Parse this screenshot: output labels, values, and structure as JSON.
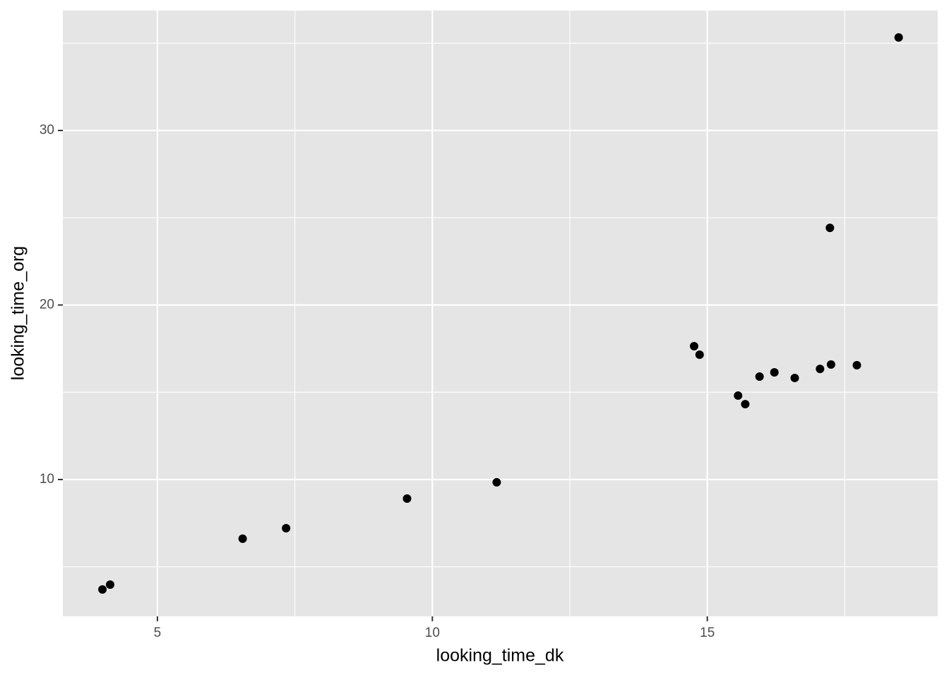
{
  "chart_data": {
    "type": "scatter",
    "xlabel": "looking_time_dk",
    "ylabel": "looking_time_org",
    "x": [
      4.0,
      4.14,
      6.55,
      7.34,
      9.54,
      11.17,
      14.76,
      14.86,
      15.56,
      15.69,
      15.95,
      16.22,
      16.59,
      17.05,
      17.25,
      17.23,
      17.72,
      18.48
    ],
    "values": [
      3.7,
      3.98,
      6.61,
      7.21,
      8.91,
      9.84,
      17.64,
      17.15,
      14.81,
      14.32,
      15.9,
      16.14,
      15.82,
      16.34,
      16.59,
      24.42,
      16.55,
      35.33
    ],
    "color": "#000000",
    "xlim": [
      3.28,
      19.19
    ],
    "ylim": [
      2.16,
      36.87
    ],
    "xticks": [
      5,
      10,
      15
    ],
    "yticks": [
      10,
      20,
      30
    ],
    "minor_xticks": [
      7.5,
      12.5,
      17.5
    ],
    "minor_yticks": [
      5,
      15,
      25,
      35
    ],
    "grid": true
  }
}
